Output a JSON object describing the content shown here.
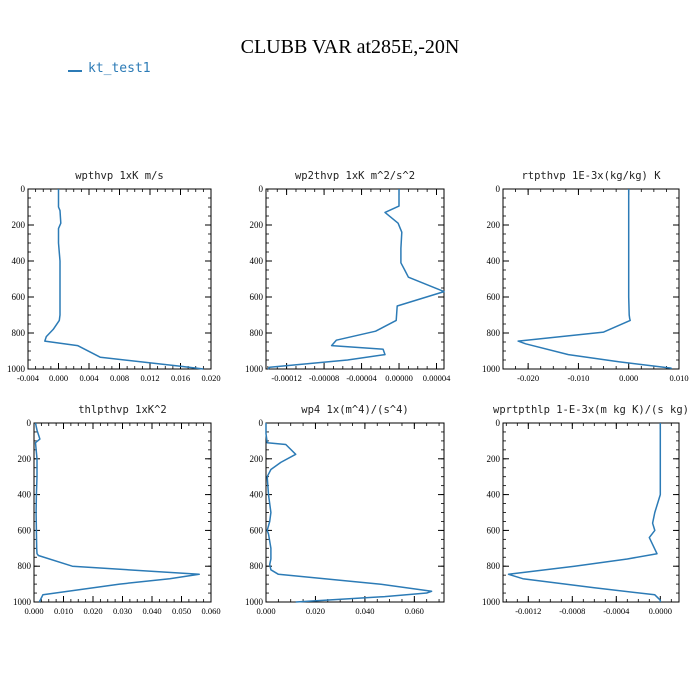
{
  "page": {
    "title": "CLUBB VAR at285E,-20N",
    "legend": [
      {
        "label": "kt_test1",
        "color": "#2c7bb6"
      }
    ]
  },
  "chart_data": [
    {
      "type": "line",
      "title": "wpthvp  1xK m/s",
      "xlim": [
        -0.004,
        0.02
      ],
      "ylim": [
        0,
        1000
      ],
      "y_inverted": true,
      "xticks": [
        -0.004,
        0.0,
        0.004,
        0.008,
        0.012,
        0.016,
        0.02
      ],
      "xticklabels": [
        "-0.004",
        "0.000",
        "0.004",
        "0.008",
        "0.012",
        "0.016",
        "0.020"
      ],
      "yticks": [
        0,
        200,
        400,
        600,
        800,
        1000
      ],
      "yticklabels": [
        "0",
        "200",
        "400",
        "600",
        "800",
        "1000"
      ],
      "series": [
        {
          "name": "kt_test1",
          "x": [
            0.0,
            0.0,
            0.0002,
            0.0003,
            0.0,
            0.0,
            0.0002,
            0.0002,
            0.0002,
            0.0002,
            0.0001,
            -0.0007,
            -0.0016,
            -0.0018,
            0.0025,
            0.0048,
            0.0055,
            0.016,
            0.019
          ],
          "y": [
            0,
            100,
            120,
            190,
            220,
            300,
            400,
            500,
            600,
            700,
            730,
            780,
            820,
            845,
            870,
            920,
            935,
            985,
            1000
          ]
        }
      ]
    },
    {
      "type": "line",
      "title": "wp2thvp  1xK m^2/s^2",
      "xlim": [
        -0.000142,
        4.8e-05
      ],
      "ylim": [
        0,
        1000
      ],
      "y_inverted": true,
      "xticks": [
        -0.00012,
        -8e-05,
        -4e-05,
        0.0,
        4e-05
      ],
      "xticklabels": [
        "-0.00012",
        "-0.00008",
        "-0.00004",
        "0.00000",
        "0.00004"
      ],
      "yticks": [
        0,
        200,
        400,
        600,
        800,
        1000
      ],
      "yticklabels": [
        "0",
        "200",
        "400",
        "600",
        "800",
        "1000"
      ],
      "series": [
        {
          "name": "kt_test1",
          "x": [
            0.0,
            0.0,
            -1.5e-05,
            -1e-06,
            3e-06,
            2e-06,
            2e-06,
            6e-06,
            1e-05,
            4.8e-05,
            -2e-06,
            -3e-06,
            -2.5e-05,
            -6.7e-05,
            -7.2e-05,
            -1.7e-05,
            -1.5e-05,
            -5.5e-05,
            -0.000138,
            -0.00014
          ],
          "y": [
            0,
            95,
            130,
            190,
            240,
            330,
            410,
            450,
            490,
            570,
            650,
            730,
            790,
            840,
            870,
            890,
            920,
            950,
            990,
            1000
          ]
        }
      ]
    },
    {
      "type": "line",
      "title": "rtpthvp  1E-3x(kg/kg) K",
      "xlim": [
        -0.025,
        0.01
      ],
      "ylim": [
        0,
        1000
      ],
      "y_inverted": true,
      "xticks": [
        -0.02,
        -0.01,
        0.0,
        0.01
      ],
      "xticklabels": [
        "-0.020",
        "-0.010",
        "0.000",
        "0.010"
      ],
      "yticks": [
        0,
        200,
        400,
        600,
        800,
        1000
      ],
      "yticklabels": [
        "0",
        "200",
        "400",
        "600",
        "800",
        "1000"
      ],
      "series": [
        {
          "name": "kt_test1",
          "x": [
            0.0,
            0.0,
            0.0,
            0.0,
            0.0,
            0.0001,
            0.0002,
            0.0003,
            -0.005,
            -0.022,
            -0.0205,
            -0.012,
            -0.002,
            0.0084,
            0.0085
          ],
          "y": [
            0,
            200,
            400,
            500,
            600,
            700,
            720,
            730,
            795,
            845,
            860,
            920,
            960,
            995,
            1000
          ]
        }
      ]
    },
    {
      "type": "line",
      "title": "thlpthvp  1xK^2",
      "xlim": [
        0.0,
        0.06
      ],
      "ylim": [
        0,
        1000
      ],
      "y_inverted": true,
      "xticks": [
        0.0,
        0.01,
        0.02,
        0.03,
        0.04,
        0.05,
        0.06
      ],
      "xticklabels": [
        "0.000",
        "0.010",
        "0.020",
        "0.030",
        "0.040",
        "0.050",
        "0.060"
      ],
      "yticks": [
        0,
        200,
        400,
        600,
        800,
        1000
      ],
      "yticklabels": [
        "0",
        "200",
        "400",
        "600",
        "800",
        "1000"
      ],
      "series": [
        {
          "name": "kt_test1",
          "x": [
            0.0005,
            0.001,
            0.002,
            0.0005,
            0.001,
            0.001,
            0.0008,
            0.0007,
            0.0008,
            0.0009,
            0.001,
            0.0015,
            0.013,
            0.056,
            0.046,
            0.029,
            0.003,
            0.0018
          ],
          "y": [
            0,
            40,
            90,
            110,
            200,
            300,
            400,
            500,
            600,
            700,
            730,
            740,
            800,
            845,
            870,
            900,
            960,
            1000
          ]
        }
      ]
    },
    {
      "type": "line",
      "title": "wp4  1x(m^4)/(s^4)",
      "xlim": [
        0.0,
        0.072
      ],
      "ylim": [
        0,
        1000
      ],
      "y_inverted": true,
      "xticks": [
        0.0,
        0.02,
        0.04,
        0.06
      ],
      "xticklabels": [
        "0.000",
        "0.020",
        "0.040",
        "0.060"
      ],
      "yticks": [
        0,
        200,
        400,
        600,
        800,
        1000
      ],
      "yticklabels": [
        "0",
        "200",
        "400",
        "600",
        "800",
        "1000"
      ],
      "series": [
        {
          "name": "kt_test1",
          "x": [
            0.0,
            0.0,
            0.0005,
            0.008,
            0.012,
            0.006,
            0.002,
            0.0005,
            0.001,
            0.002,
            0.0015,
            0.0005,
            0.001,
            0.002,
            0.002,
            0.0015,
            0.002,
            0.005,
            0.046,
            0.067,
            0.065,
            0.048,
            0.012
          ],
          "y": [
            0,
            60,
            110,
            120,
            175,
            220,
            260,
            300,
            400,
            500,
            550,
            600,
            620,
            700,
            760,
            790,
            820,
            845,
            900,
            940,
            950,
            970,
            1000
          ]
        }
      ]
    },
    {
      "type": "line",
      "title": "wprtpthlp  1-E-3x(m kg K)/(s kg)",
      "xlim": [
        -0.00143,
        0.00017
      ],
      "ylim": [
        0,
        1000
      ],
      "y_inverted": true,
      "xticks": [
        -0.0012,
        -0.0008,
        -0.0004,
        0.0
      ],
      "xticklabels": [
        "-0.0012",
        "-0.0008",
        "-0.0004",
        "0.0000"
      ],
      "yticks": [
        0,
        200,
        400,
        600,
        800,
        1000
      ],
      "yticklabels": [
        "0",
        "200",
        "400",
        "600",
        "800",
        "1000"
      ],
      "series": [
        {
          "name": "kt_test1",
          "x": [
            0.0,
            0.0,
            0.0,
            -5e-05,
            -7e-05,
            -5e-05,
            -0.0001,
            -3e-05,
            -0.0003,
            -0.00078,
            -0.00138,
            -0.00125,
            -0.0006,
            -5e-05,
            0.0,
            0.0
          ],
          "y": [
            0,
            200,
            400,
            500,
            560,
            600,
            640,
            730,
            760,
            800,
            845,
            870,
            920,
            960,
            990,
            1000
          ]
        }
      ]
    }
  ]
}
